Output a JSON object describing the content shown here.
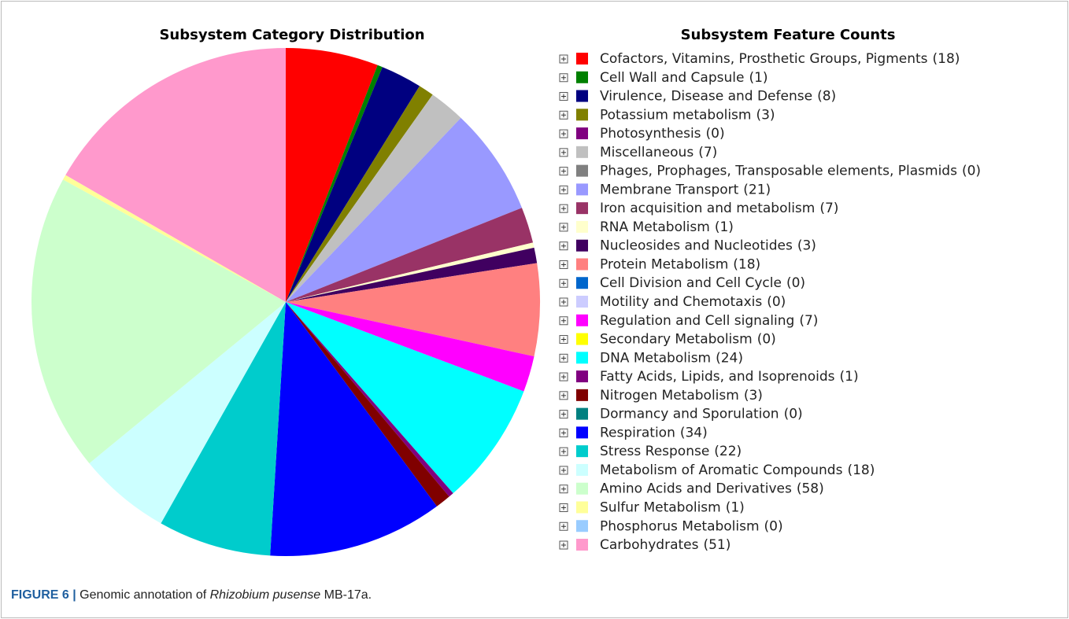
{
  "chart_data": {
    "type": "pie",
    "title": "Subsystem Category Distribution",
    "legend_title": "Subsystem Feature Counts",
    "categories": [
      "Cofactors, Vitamins, Prosthetic Groups, Pigments",
      "Cell Wall and Capsule",
      "Virulence, Disease and Defense",
      "Potassium metabolism",
      "Photosynthesis",
      "Miscellaneous",
      "Phages, Prophages, Transposable elements, Plasmids",
      "Membrane Transport",
      "Iron acquisition and metabolism",
      "RNA Metabolism",
      "Nucleosides and Nucleotides",
      "Protein Metabolism",
      "Cell Division and Cell Cycle",
      "Motility and Chemotaxis",
      "Regulation and Cell signaling",
      "Secondary Metabolism",
      "DNA Metabolism",
      "Fatty Acids, Lipids, and Isoprenoids",
      "Nitrogen Metabolism",
      "Dormancy and Sporulation",
      "Respiration",
      "Stress Response",
      "Metabolism of Aromatic Compounds",
      "Amino Acids and Derivatives",
      "Sulfur Metabolism",
      "Phosphorus Metabolism",
      "Carbohydrates"
    ],
    "values": [
      18,
      1,
      8,
      3,
      0,
      7,
      0,
      21,
      7,
      1,
      3,
      18,
      0,
      0,
      7,
      0,
      24,
      1,
      3,
      0,
      34,
      22,
      18,
      58,
      1,
      0,
      51
    ],
    "value_labels": [
      "(18)",
      "(1)",
      "(8)",
      "(3)",
      "(0)",
      "(7)",
      "(0)",
      "(21)",
      "(7)",
      "(1)",
      "(3)",
      "(18)",
      "(0)",
      "(0)",
      "(7)",
      "(0)",
      "(24)",
      "(1)",
      "(3)",
      "(0)",
      "(34)",
      "(22)",
      "(18)",
      "(58)",
      "(1)",
      "(0)",
      "(51)"
    ],
    "colors": [
      "#ff0000",
      "#008000",
      "#000080",
      "#808000",
      "#800080",
      "#c0c0c0",
      "#808080",
      "#9999ff",
      "#993366",
      "#ffffcc",
      "#400060",
      "#ff8080",
      "#0066cc",
      "#ccccff",
      "#ff00ff",
      "#ffff00",
      "#00ffff",
      "#800080",
      "#800000",
      "#008080",
      "#0000ff",
      "#00cccc",
      "#ccffff",
      "#ccffcc",
      "#ffff99",
      "#99ccff",
      "#ff99cc"
    ]
  },
  "caption": {
    "label": "FIGURE 6 |",
    "before": "Genomic annotation of",
    "italic": "Rhizobium pusense",
    "after": "MB-17a."
  }
}
